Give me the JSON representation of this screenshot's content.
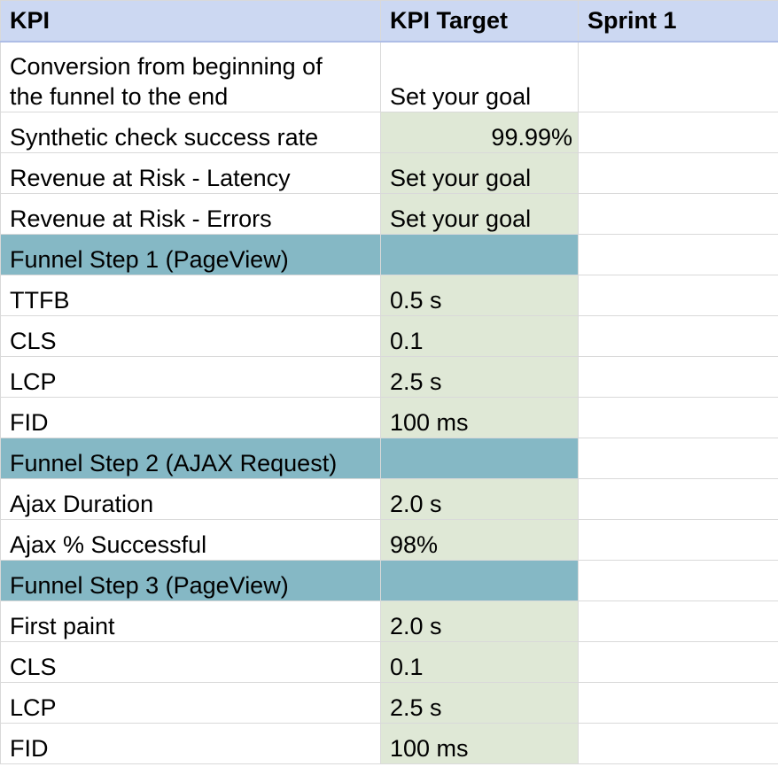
{
  "header": {
    "kpi": "KPI",
    "target": "KPI Target",
    "sprint": "Sprint 1"
  },
  "overview": {
    "conversion": {
      "line1": "Conversion from beginning of",
      "line2": "the funnel to the end",
      "target": "Set your goal"
    },
    "synthetic": {
      "label": "Synthetic check success rate",
      "target": "99.99%"
    },
    "latency": {
      "label": "Revenue at Risk - Latency",
      "target": "Set your goal"
    },
    "errors": {
      "label": "Revenue at Risk - Errors",
      "target": "Set your goal"
    }
  },
  "step1": {
    "title": "Funnel Step 1 (PageView)",
    "rows": [
      {
        "label": "TTFB",
        "target": "0.5 s"
      },
      {
        "label": "CLS",
        "target": "0.1"
      },
      {
        "label": "LCP",
        "target": "2.5 s"
      },
      {
        "label": "FID",
        "target": "100 ms"
      }
    ]
  },
  "step2": {
    "title": "Funnel Step 2 (AJAX Request)",
    "rows": [
      {
        "label": "Ajax Duration",
        "target": "2.0 s"
      },
      {
        "label": "Ajax % Successful",
        "target": "98%"
      }
    ]
  },
  "step3": {
    "title": "Funnel Step 3 (PageView)",
    "rows": [
      {
        "label": "First paint",
        "target": "2.0 s"
      },
      {
        "label": "CLS",
        "target": "0.1"
      },
      {
        "label": "LCP",
        "target": "2.5 s"
      },
      {
        "label": "FID",
        "target": "100 ms"
      }
    ]
  },
  "colors": {
    "header": "#ccd8f2",
    "section": "#85b8c5",
    "target_fill": "#dfe8d6",
    "grid": "#d9d9d9"
  }
}
